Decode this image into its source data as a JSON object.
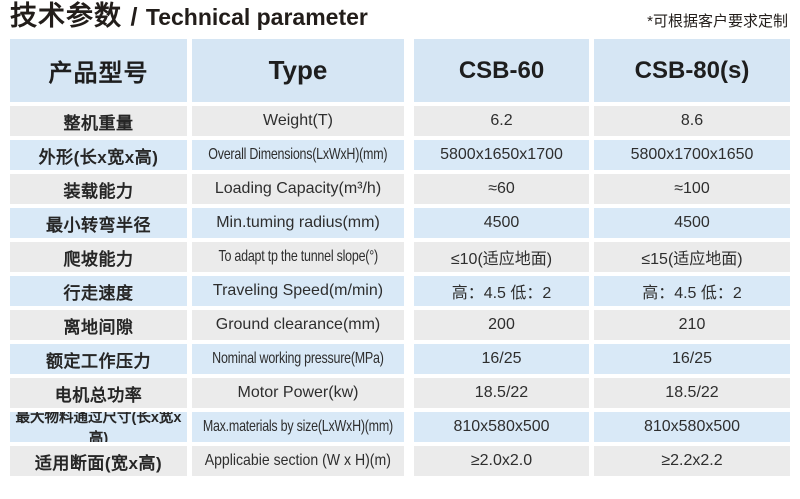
{
  "page": {
    "title_cn": "技术参数",
    "title_sep": "/",
    "title_en": "Technical parameter",
    "note": "*可根据客户要求定制"
  },
  "colors": {
    "header_blue": "#d6e6f4",
    "row_blue": "#d9e9f7",
    "row_gray": "#ebebeb",
    "text_dark": "#221d1a"
  },
  "table": {
    "header": {
      "product_model": "产品型号",
      "type": "Type",
      "model_1": "CSB-60",
      "model_2": "CSB-80(s)"
    },
    "rows": [
      {
        "cn": "整机重量",
        "en": "Weight(T)",
        "v1": "6.2",
        "v2": "8.6"
      },
      {
        "cn": "外形(长x宽x高)",
        "en": "Overall Dimensions(LxWxH)(mm)",
        "v1": "5800x1650x1700",
        "v2": "5800x1700x1650"
      },
      {
        "cn": "装载能力",
        "en": "Loading Capacity(m³/h)",
        "v1": "≈60",
        "v2": "≈100"
      },
      {
        "cn": "最小转弯半径",
        "en": "Min.tuming radius(mm)",
        "v1": "4500",
        "v2": "4500"
      },
      {
        "cn": "爬坡能力",
        "en": "To adapt tp the tunnel slope(°)",
        "v1": "≤10(适应地面)",
        "v2": "≤15(适应地面)"
      },
      {
        "cn": "行走速度",
        "en": "Traveling Speed(m/min)",
        "v1": "高：4.5 低：2",
        "v2": "高：4.5 低：2"
      },
      {
        "cn": "离地间隙",
        "en": "Ground clearance(mm)",
        "v1": "200",
        "v2": "210"
      },
      {
        "cn": "额定工作压力",
        "en": "Nominal working pressure(MPa)",
        "v1": "16/25",
        "v2": "16/25"
      },
      {
        "cn": "电机总功率",
        "en": "Motor Power(kw)",
        "v1": "18.5/22",
        "v2": "18.5/22"
      },
      {
        "cn": "最大物料通过尺寸(长x宽x高)",
        "en": "Max.materials by size(LxWxH)(mm)",
        "v1": "810x580x500",
        "v2": "810x580x500"
      },
      {
        "cn": "适用断面(宽x高)",
        "en": "Applicabie section (W x H)(m)",
        "v1": "≥2.0x2.0",
        "v2": "≥2.2x2.2"
      }
    ]
  }
}
